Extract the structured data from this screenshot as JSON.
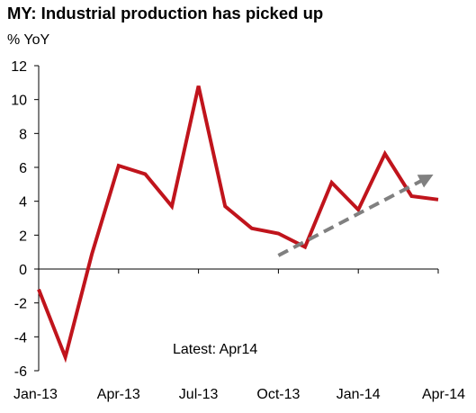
{
  "chart_data": {
    "type": "line",
    "title": "MY: Industrial production has picked up",
    "ylabel": "% YoY",
    "xlabel": "",
    "x": [
      "Jan-13",
      "Feb-13",
      "Mar-13",
      "Apr-13",
      "May-13",
      "Jun-13",
      "Jul-13",
      "Aug-13",
      "Sep-13",
      "Oct-13",
      "Nov-13",
      "Dec-13",
      "Jan-14",
      "Feb-14",
      "Mar-14",
      "Apr-14"
    ],
    "x_tick_labels": [
      "Jan-13",
      "Apr-13",
      "Jul-13",
      "Oct-13",
      "Jan-14",
      "Apr-14"
    ],
    "ylim": [
      -6,
      12
    ],
    "y_ticks": [
      -6,
      -4,
      -2,
      0,
      2,
      4,
      6,
      8,
      10,
      12
    ],
    "series": [
      {
        "color": "#c0141c",
        "values": [
          -1.2,
          -5.2,
          0.9,
          6.1,
          5.6,
          3.7,
          10.8,
          3.7,
          2.4,
          2.1,
          1.3,
          5.1,
          3.5,
          6.8,
          4.3,
          4.1
        ]
      }
    ],
    "trend_arrow": {
      "color": "#808080",
      "style": "dashed",
      "from": {
        "x": 9,
        "y": 0.8
      },
      "to": {
        "x": 14.6,
        "y": 5.4
      }
    },
    "annotation": "Latest: Apr14",
    "grid": false,
    "legend": "none"
  }
}
